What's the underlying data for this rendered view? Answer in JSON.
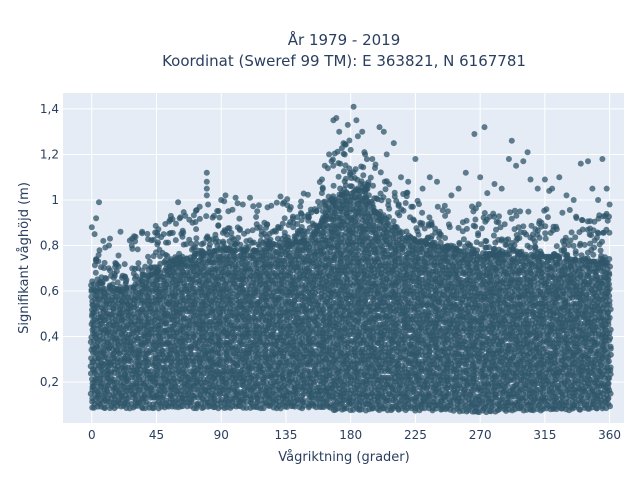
{
  "chart_data": {
    "type": "scatter",
    "title_line1": "År 1979 - 2019",
    "title_line2": "Koordinat (Sweref 99 TM): E 363821, N 6167781",
    "xlabel": "Vågriktning (grader)",
    "ylabel": "Signifikant våghöjd (m)",
    "xlim": [
      -20,
      370
    ],
    "ylim": [
      0.02,
      1.47
    ],
    "xticks": [
      0,
      45,
      90,
      135,
      180,
      225,
      270,
      315,
      360
    ],
    "xtick_labels": [
      "0",
      "45",
      "90",
      "135",
      "180",
      "225",
      "270",
      "315",
      "360"
    ],
    "yticks": [
      0.2,
      0.4,
      0.6,
      0.8,
      1.0,
      1.2,
      1.4
    ],
    "ytick_labels": [
      "0,2",
      "0,4",
      "0,6",
      "0,8",
      "1",
      "1,2",
      "1,4"
    ],
    "grid": true,
    "background": "#e5ecf6",
    "marker_color": "#2f5569",
    "envelope": {
      "x": [
        0,
        20,
        45,
        70,
        90,
        110,
        135,
        150,
        160,
        170,
        180,
        190,
        200,
        225,
        250,
        270,
        300,
        330,
        360
      ],
      "y_min": [
        0.09,
        0.09,
        0.09,
        0.09,
        0.09,
        0.09,
        0.09,
        0.09,
        0.09,
        0.08,
        0.08,
        0.08,
        0.08,
        0.08,
        0.08,
        0.07,
        0.08,
        0.08,
        0.09
      ],
      "y_max_dense": [
        0.65,
        0.6,
        0.68,
        0.75,
        0.78,
        0.77,
        0.8,
        0.82,
        0.9,
        1.0,
        1.05,
        1.0,
        0.92,
        0.82,
        0.78,
        0.76,
        0.76,
        0.74,
        0.72
      ]
    },
    "outliers": [
      {
        "x": 0,
        "y": 0.88
      },
      {
        "x": 3,
        "y": 0.92
      },
      {
        "x": 5,
        "y": 0.99
      },
      {
        "x": 2,
        "y": 0.85
      },
      {
        "x": 8,
        "y": 0.82
      },
      {
        "x": 12,
        "y": 0.8
      },
      {
        "x": 20,
        "y": 0.86
      },
      {
        "x": 28,
        "y": 0.83
      },
      {
        "x": 35,
        "y": 0.86
      },
      {
        "x": 50,
        "y": 0.85
      },
      {
        "x": 55,
        "y": 0.93
      },
      {
        "x": 60,
        "y": 0.99
      },
      {
        "x": 65,
        "y": 0.93
      },
      {
        "x": 70,
        "y": 0.9
      },
      {
        "x": 75,
        "y": 0.97
      },
      {
        "x": 80,
        "y": 1.02
      },
      {
        "x": 85,
        "y": 0.93
      },
      {
        "x": 90,
        "y": 1.0
      },
      {
        "x": 93,
        "y": 1.02
      },
      {
        "x": 95,
        "y": 0.95
      },
      {
        "x": 80,
        "y": 1.05
      },
      {
        "x": 80,
        "y": 1.08
      },
      {
        "x": 80,
        "y": 1.12
      },
      {
        "x": 100,
        "y": 1.01
      },
      {
        "x": 105,
        "y": 0.98
      },
      {
        "x": 110,
        "y": 1.01
      },
      {
        "x": 115,
        "y": 0.95
      },
      {
        "x": 120,
        "y": 0.9
      },
      {
        "x": 128,
        "y": 0.86
      },
      {
        "x": 140,
        "y": 0.88
      },
      {
        "x": 150,
        "y": 0.86
      },
      {
        "x": 155,
        "y": 0.96
      },
      {
        "x": 160,
        "y": 1.03
      },
      {
        "x": 162,
        "y": 1.15
      },
      {
        "x": 165,
        "y": 1.2
      },
      {
        "x": 168,
        "y": 1.35
      },
      {
        "x": 170,
        "y": 1.36
      },
      {
        "x": 172,
        "y": 1.3
      },
      {
        "x": 175,
        "y": 1.25
      },
      {
        "x": 178,
        "y": 1.33
      },
      {
        "x": 180,
        "y": 1.22
      },
      {
        "x": 182,
        "y": 1.41
      },
      {
        "x": 184,
        "y": 1.35
      },
      {
        "x": 185,
        "y": 1.28
      },
      {
        "x": 188,
        "y": 1.3
      },
      {
        "x": 190,
        "y": 1.2
      },
      {
        "x": 195,
        "y": 1.18
      },
      {
        "x": 200,
        "y": 1.32
      },
      {
        "x": 203,
        "y": 1.3
      },
      {
        "x": 205,
        "y": 1.2
      },
      {
        "x": 210,
        "y": 1.25
      },
      {
        "x": 215,
        "y": 1.1
      },
      {
        "x": 220,
        "y": 1.08
      },
      {
        "x": 225,
        "y": 1.18
      },
      {
        "x": 230,
        "y": 1.05
      },
      {
        "x": 235,
        "y": 1.1
      },
      {
        "x": 240,
        "y": 1.08
      },
      {
        "x": 250,
        "y": 1.02
      },
      {
        "x": 255,
        "y": 1.05
      },
      {
        "x": 260,
        "y": 1.12
      },
      {
        "x": 266,
        "y": 1.29
      },
      {
        "x": 270,
        "y": 1.1
      },
      {
        "x": 273,
        "y": 1.32
      },
      {
        "x": 275,
        "y": 1.03
      },
      {
        "x": 280,
        "y": 1.07
      },
      {
        "x": 285,
        "y": 1.05
      },
      {
        "x": 290,
        "y": 1.18
      },
      {
        "x": 292,
        "y": 1.26
      },
      {
        "x": 295,
        "y": 1.15
      },
      {
        "x": 300,
        "y": 1.17
      },
      {
        "x": 303,
        "y": 1.21
      },
      {
        "x": 305,
        "y": 1.09
      },
      {
        "x": 310,
        "y": 1.05
      },
      {
        "x": 315,
        "y": 1.09
      },
      {
        "x": 318,
        "y": 1.04
      },
      {
        "x": 320,
        "y": 1.05
      },
      {
        "x": 325,
        "y": 1.1
      },
      {
        "x": 330,
        "y": 1.02
      },
      {
        "x": 335,
        "y": 1.0
      },
      {
        "x": 340,
        "y": 1.16
      },
      {
        "x": 345,
        "y": 1.17
      },
      {
        "x": 348,
        "y": 1.05
      },
      {
        "x": 352,
        "y": 1.0
      },
      {
        "x": 355,
        "y": 1.18
      },
      {
        "x": 358,
        "y": 1.05
      },
      {
        "x": 360,
        "y": 0.98
      },
      {
        "x": 357,
        "y": 0.93
      }
    ]
  }
}
